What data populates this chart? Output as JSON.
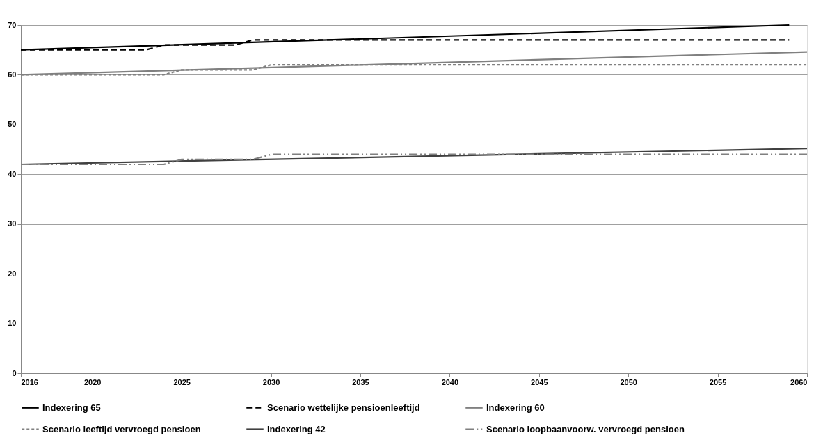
{
  "chart_data": {
    "type": "line",
    "xlim": [
      2016,
      2060
    ],
    "xticks": [
      2016,
      2020,
      2025,
      2030,
      2035,
      2040,
      2045,
      2050,
      2055,
      2060
    ],
    "ylim": [
      0,
      70
    ],
    "yticks": [
      0,
      10,
      20,
      30,
      40,
      50,
      60,
      70
    ],
    "grid": "y",
    "legend": "bottom",
    "marker": "none",
    "series": [
      {
        "name": "Indexering 65",
        "color": "#000000",
        "line_style": "solid",
        "x": [
          2016,
          2059
        ],
        "values": [
          65,
          70
        ]
      },
      {
        "name": "Scenario wettelijke pensioenleeftijd",
        "color": "#000000",
        "line_style": "dashed",
        "x": [
          2016,
          2023,
          2024,
          2028,
          2029,
          2059
        ],
        "values": [
          65,
          65,
          66,
          66,
          67,
          67
        ]
      },
      {
        "name": "Indexering 60",
        "color": "#808080",
        "line_style": "solid",
        "x": [
          2016,
          2060
        ],
        "values": [
          60,
          64.6
        ]
      },
      {
        "name": "Scenario leeftijd vervroegd pensioen",
        "color": "#808080",
        "line_style": "dotted",
        "x": [
          2016,
          2024,
          2025,
          2029,
          2030,
          2060
        ],
        "values": [
          60,
          60,
          61,
          61,
          62,
          62
        ]
      },
      {
        "name": "Indexering 42",
        "color": "#404040",
        "line_style": "solid",
        "x": [
          2016,
          2060
        ],
        "values": [
          42,
          45.2
        ]
      },
      {
        "name": "Scenario loopbaanvoorw. vervroegd pensioen",
        "color": "#808080",
        "line_style": "dashdot",
        "x": [
          2016,
          2024,
          2025,
          2029,
          2030,
          2060
        ],
        "values": [
          42,
          42,
          43,
          43,
          44,
          44
        ]
      }
    ]
  }
}
